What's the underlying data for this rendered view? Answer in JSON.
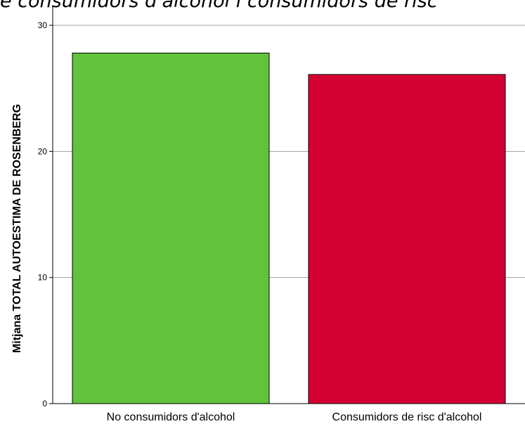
{
  "chart_data": {
    "type": "bar",
    "title": "e consumidors d'alcohol i consumidors de risc",
    "ylabel": "Mitjana TOTAL AUTOESTIMA DE ROSENBERG",
    "xlabel": "",
    "categories": [
      "No consumidors d'alcohol",
      "Consumidors de risc d'alcohol"
    ],
    "values": [
      27.8,
      26.1
    ],
    "ylim": [
      0,
      30
    ],
    "yticks": [
      0,
      10,
      20,
      30
    ],
    "grid": true,
    "legend": "none",
    "colors": [
      "#60c33b",
      "#d50032"
    ]
  }
}
